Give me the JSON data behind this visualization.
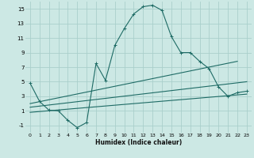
{
  "xlabel": "Humidex (Indice chaleur)",
  "bg_color": "#cce8e4",
  "grid_color": "#aacfcb",
  "line_color": "#1e6b65",
  "xlim": [
    -0.5,
    23.5
  ],
  "ylim": [
    -2,
    16
  ],
  "xticks": [
    0,
    1,
    2,
    3,
    4,
    5,
    6,
    7,
    8,
    9,
    10,
    11,
    12,
    13,
    14,
    15,
    16,
    17,
    18,
    19,
    20,
    21,
    22,
    23
  ],
  "yticks": [
    -1,
    1,
    3,
    5,
    7,
    9,
    11,
    13,
    15
  ],
  "series1_x": [
    0,
    1,
    2,
    3,
    4,
    5,
    6,
    7,
    8,
    9,
    10,
    11,
    12,
    13,
    14,
    15,
    16,
    17,
    18,
    19,
    20,
    21,
    22,
    23
  ],
  "series1_y": [
    4.8,
    2.3,
    1.1,
    1.0,
    -0.3,
    -1.3,
    -0.6,
    7.5,
    5.2,
    10.0,
    12.3,
    14.3,
    15.3,
    15.5,
    14.8,
    11.2,
    9.0,
    9.0,
    7.8,
    6.8,
    4.3,
    3.0,
    3.5,
    3.7
  ],
  "series2_x": [
    0,
    22
  ],
  "series2_y": [
    2.0,
    7.8
  ],
  "series3_x": [
    0,
    23
  ],
  "series3_y": [
    1.5,
    5.0
  ],
  "series4_x": [
    0,
    23
  ],
  "series4_y": [
    0.8,
    3.3
  ]
}
